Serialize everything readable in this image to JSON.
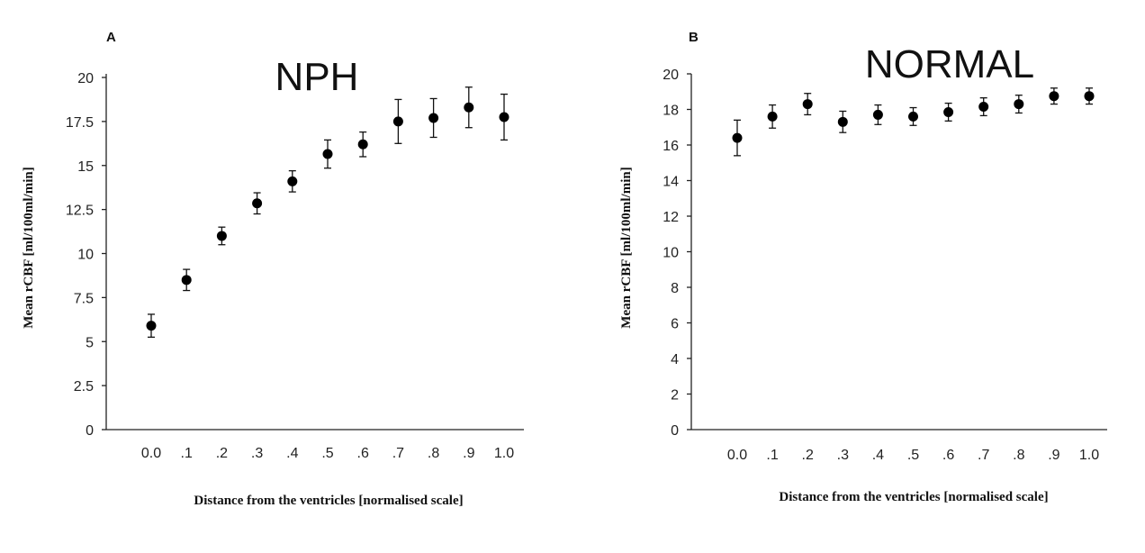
{
  "chart_data": [
    {
      "type": "scatter",
      "panel": "A",
      "title": "NPH",
      "xlabel": "Distance from the ventricles [normalised scale]",
      "ylabel": "Mean rCBF [ml/100ml/min]",
      "ylim": [
        0,
        20
      ],
      "yticks": [
        "0",
        "2.5",
        "5",
        "7.5",
        "10",
        "12.5",
        "15",
        "17.5",
        "20"
      ],
      "categories": [
        "0.0",
        ".1",
        ".2",
        ".3",
        ".4",
        ".5",
        ".6",
        ".7",
        ".8",
        ".9",
        "1.0"
      ],
      "values": [
        5.9,
        8.5,
        11.0,
        12.85,
        14.1,
        15.65,
        16.2,
        17.5,
        17.7,
        18.3,
        17.75
      ],
      "errors": [
        0.65,
        0.6,
        0.5,
        0.6,
        0.6,
        0.8,
        0.7,
        1.25,
        1.1,
        1.15,
        1.3
      ]
    },
    {
      "type": "scatter",
      "panel": "B",
      "title": "NORMAL",
      "xlabel": "Distance from the ventricles [normalised scale]",
      "ylabel": "Mean rCBF [ml/100ml/min]",
      "ylim": [
        0,
        20
      ],
      "yticks": [
        "0",
        "2",
        "4",
        "6",
        "8",
        "10",
        "12",
        "14",
        "16",
        "18",
        "20"
      ],
      "categories": [
        "0.0",
        ".1",
        ".2",
        ".3",
        ".4",
        ".5",
        ".6",
        ".7",
        ".8",
        ".9",
        "1.0"
      ],
      "values": [
        16.4,
        17.6,
        18.3,
        17.3,
        17.7,
        17.6,
        17.85,
        18.15,
        18.3,
        18.75,
        18.75
      ],
      "errors": [
        1.0,
        0.65,
        0.6,
        0.6,
        0.55,
        0.5,
        0.5,
        0.5,
        0.5,
        0.45,
        0.45
      ]
    }
  ]
}
